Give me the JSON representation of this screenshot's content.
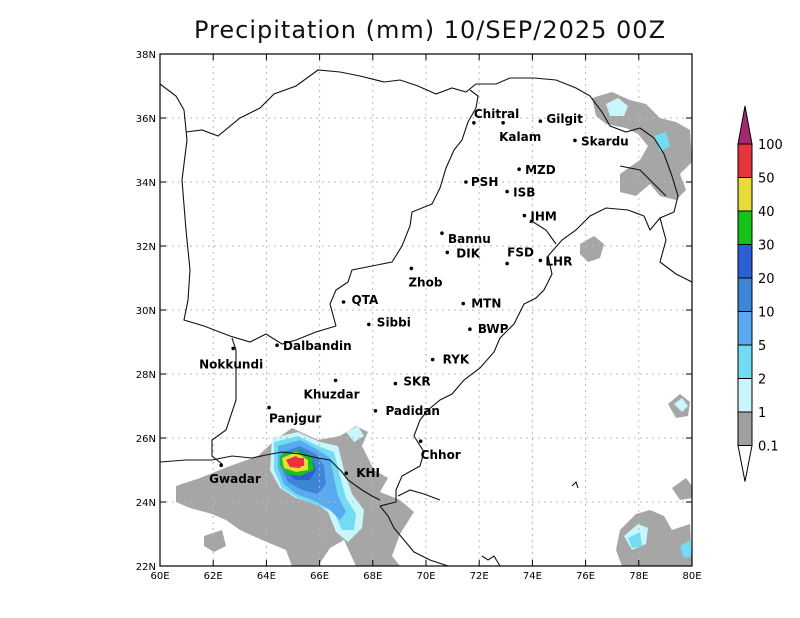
{
  "title": "Precipitation (mm) 10/SEP/2025 00Z",
  "map": {
    "lon_range": [
      60,
      80
    ],
    "lat_range": [
      22,
      38
    ],
    "x_ticks": [
      {
        "lon": 60,
        "label": "60E"
      },
      {
        "lon": 62,
        "label": "62E"
      },
      {
        "lon": 64,
        "label": "64E"
      },
      {
        "lon": 66,
        "label": "66E"
      },
      {
        "lon": 68,
        "label": "68E"
      },
      {
        "lon": 70,
        "label": "70E"
      },
      {
        "lon": 72,
        "label": "72E"
      },
      {
        "lon": 74,
        "label": "74E"
      },
      {
        "lon": 76,
        "label": "76E"
      },
      {
        "lon": 78,
        "label": "78E"
      },
      {
        "lon": 80,
        "label": "80E"
      }
    ],
    "y_ticks": [
      {
        "lat": 22,
        "label": "22N"
      },
      {
        "lat": 24,
        "label": "24N"
      },
      {
        "lat": 26,
        "label": "26N"
      },
      {
        "lat": 28,
        "label": "28N"
      },
      {
        "lat": 30,
        "label": "30N"
      },
      {
        "lat": 32,
        "label": "32N"
      },
      {
        "lat": 34,
        "label": "34N"
      },
      {
        "lat": 36,
        "label": "36N"
      },
      {
        "lat": 38,
        "label": "38N"
      }
    ],
    "grid": true,
    "cities": [
      {
        "name": "Chitral",
        "lon": 71.8,
        "lat": 35.85,
        "dx": 0,
        "dy": -5
      },
      {
        "name": "Gilgit",
        "lon": 74.3,
        "lat": 35.9,
        "dx": 6,
        "dy": 2
      },
      {
        "name": "Kalam",
        "lon": 72.9,
        "lat": 35.85,
        "dx": -4,
        "dy": 18
      },
      {
        "name": "Skardu",
        "lon": 75.6,
        "lat": 35.3,
        "dx": 6,
        "dy": 5
      },
      {
        "name": "MZD",
        "lon": 73.5,
        "lat": 34.4,
        "dx": 6,
        "dy": 5
      },
      {
        "name": "PSH",
        "lon": 71.5,
        "lat": 34.0,
        "dx": 5,
        "dy": 4
      },
      {
        "name": "ISB",
        "lon": 73.05,
        "lat": 33.7,
        "dx": 6,
        "dy": 5
      },
      {
        "name": "JHM",
        "lon": 73.7,
        "lat": 32.95,
        "dx": 6,
        "dy": 5
      },
      {
        "name": "Bannu",
        "lon": 70.6,
        "lat": 32.4,
        "dx": 6,
        "dy": 10
      },
      {
        "name": "DIK",
        "lon": 70.8,
        "lat": 31.8,
        "dx": 9,
        "dy": 5
      },
      {
        "name": "FSD",
        "lon": 73.05,
        "lat": 31.45,
        "dx": 0,
        "dy": -7
      },
      {
        "name": "LHR",
        "lon": 74.3,
        "lat": 31.55,
        "dx": 5,
        "dy": 5
      },
      {
        "name": "Zhob",
        "lon": 69.45,
        "lat": 31.3,
        "dx": -3,
        "dy": 18
      },
      {
        "name": "QTA",
        "lon": 66.9,
        "lat": 30.25,
        "dx": 8,
        "dy": 2
      },
      {
        "name": "MTN",
        "lon": 71.4,
        "lat": 30.2,
        "dx": 8,
        "dy": 4
      },
      {
        "name": "Sibbi",
        "lon": 67.85,
        "lat": 29.55,
        "dx": 8,
        "dy": 2
      },
      {
        "name": "BWP",
        "lon": 71.65,
        "lat": 29.4,
        "dx": 8,
        "dy": 4
      },
      {
        "name": "Dalbandin",
        "lon": 64.4,
        "lat": 28.9,
        "dx": 6,
        "dy": 5
      },
      {
        "name": "Nokkundi",
        "lon": 62.75,
        "lat": 28.8,
        "dx": -34,
        "dy": 20
      },
      {
        "name": "RYK",
        "lon": 70.25,
        "lat": 28.45,
        "dx": 10,
        "dy": 4
      },
      {
        "name": "Khuzdar",
        "lon": 66.6,
        "lat": 27.8,
        "dx": -32,
        "dy": 18
      },
      {
        "name": "SKR",
        "lon": 68.85,
        "lat": 27.7,
        "dx": 8,
        "dy": 2
      },
      {
        "name": "Panjgur",
        "lon": 64.1,
        "lat": 26.95,
        "dx": 0,
        "dy": 15
      },
      {
        "name": "Padidan",
        "lon": 68.1,
        "lat": 26.85,
        "dx": 10,
        "dy": 4
      },
      {
        "name": "Chhor",
        "lon": 69.8,
        "lat": 25.9,
        "dx": 0,
        "dy": 18
      },
      {
        "name": "KHI",
        "lon": 67.0,
        "lat": 24.9,
        "dx": 10,
        "dy": 4
      },
      {
        "name": "Gwadar",
        "lon": 62.3,
        "lat": 25.15,
        "dx": -12,
        "dy": 18
      }
    ]
  },
  "colorbar": {
    "levels": [
      {
        "label": "100",
        "color": "#e8343c"
      },
      {
        "label": "50",
        "color": "#e8dc3a"
      },
      {
        "label": "40",
        "color": "#17c217"
      },
      {
        "label": "30",
        "color": "#2b5fd6"
      },
      {
        "label": "20",
        "color": "#3d85d6"
      },
      {
        "label": "10",
        "color": "#5aaaf0"
      },
      {
        "label": "5",
        "color": "#72dcf4"
      },
      {
        "label": "2",
        "color": "#c8f6fa"
      },
      {
        "label": "1",
        "color": "#a0a0a0"
      },
      {
        "label": "0.1",
        "color": "#ffffff"
      }
    ],
    "top_arrow_color": "#a3286e",
    "bottom_arrow_color": "#ffffff"
  }
}
